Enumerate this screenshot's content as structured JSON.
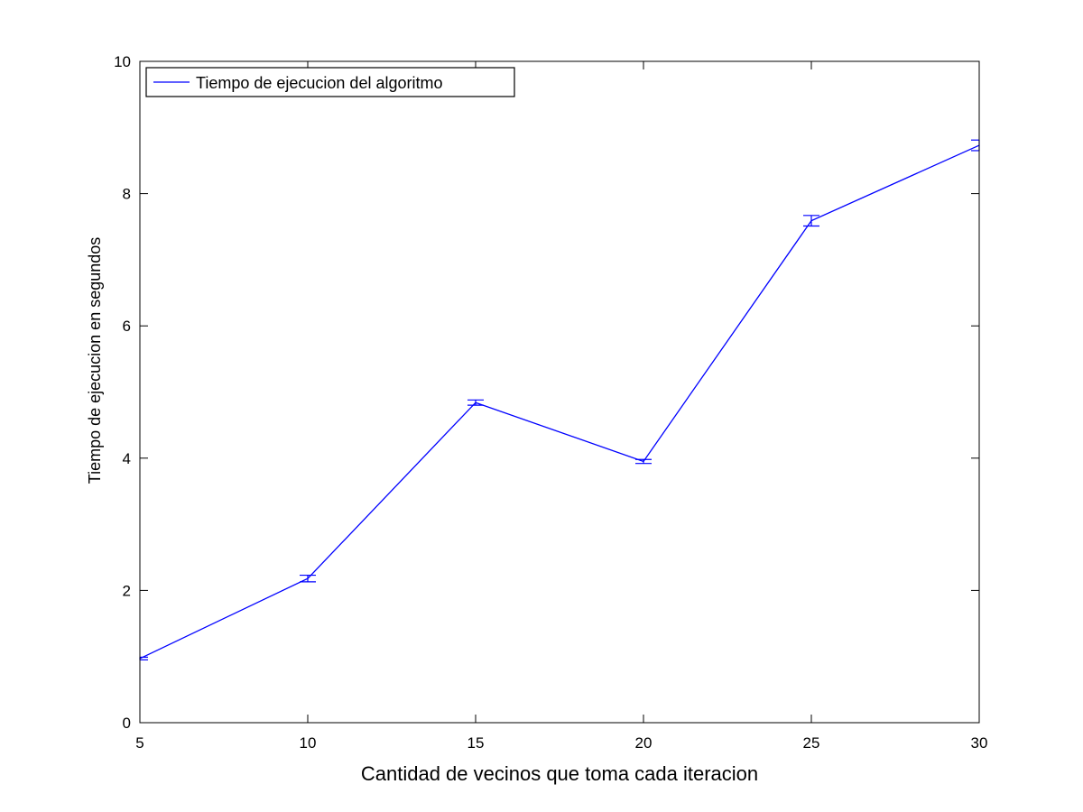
{
  "chart_data": {
    "type": "line",
    "title": "",
    "xlabel": "Cantidad de vecinos que toma cada iteracion",
    "ylabel": "Tiempo de ejecucion en segundos",
    "xlim": [
      5,
      30
    ],
    "ylim": [
      0,
      10
    ],
    "x_ticks": [
      5,
      10,
      15,
      20,
      25,
      30
    ],
    "y_ticks": [
      0,
      2,
      4,
      6,
      8,
      10
    ],
    "x_tick_labels": [
      "5",
      "10",
      "15",
      "20",
      "25",
      "30"
    ],
    "y_tick_labels": [
      "0",
      "2",
      "4",
      "6",
      "8",
      "10"
    ],
    "grid": false,
    "legend_position": "top-left",
    "series": [
      {
        "name": "Tiempo de ejecucion del algoritmo",
        "color": "#0000ff",
        "x": [
          5,
          10,
          15,
          20,
          25,
          30
        ],
        "y": [
          0.97,
          2.18,
          4.84,
          3.95,
          7.59,
          8.73
        ],
        "error": [
          0.02,
          0.05,
          0.04,
          0.03,
          0.08,
          0.08
        ]
      }
    ]
  }
}
